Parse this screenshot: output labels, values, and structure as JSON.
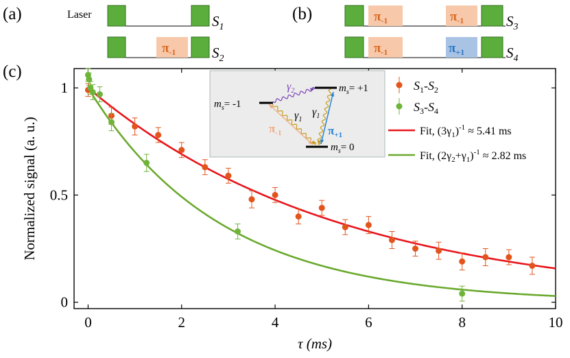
{
  "panels": {
    "a": {
      "label": "(a)",
      "laser_label": "Laser",
      "rows": [
        {
          "name": "S",
          "sub": "1",
          "pulse": null
        },
        {
          "name": "S",
          "sub": "2",
          "pulse": {
            "sym": "π",
            "sub": "-1"
          }
        }
      ]
    },
    "b": {
      "label": "(b)",
      "rows": [
        {
          "name": "S",
          "sub": "3",
          "pulses": [
            {
              "sym": "π",
              "sub": "-1"
            },
            {
              "sym": "π",
              "sub": "-1"
            }
          ]
        },
        {
          "name": "S",
          "sub": "4",
          "pulses": [
            {
              "sym": "π",
              "sub": "-1"
            },
            {
              "sym": "π",
              "sub": "+1"
            }
          ]
        }
      ]
    },
    "c": {
      "label": "(c)"
    }
  },
  "colors": {
    "laser_green": "#5cae3c",
    "laser_border": "#2f6d1c",
    "pi_minus_fill": "#f7c9aa",
    "pi_minus_text": "#d9651c",
    "pi_plus_fill": "#a9c3e4",
    "pi_plus_text": "#2a74c0",
    "s12_color": "#e2541c",
    "s34_color": "#6fb43a",
    "fit_red": "#e8141c",
    "fit_green": "#6aa92d",
    "inset_bg": "#ececec",
    "wavy_purple": "#7a44b5",
    "wavy_gold": "#c99a1c",
    "arrow_peach": "#f0aa7e",
    "arrow_blue": "#2383d6"
  },
  "inset": {
    "levels": [
      {
        "label": "m",
        "sub": "s",
        "value": "= -1"
      },
      {
        "label": "m",
        "sub": "s",
        "value": "= +1"
      },
      {
        "label": "m",
        "sub": "s",
        "value": "= 0"
      }
    ],
    "gamma2": {
      "sym": "γ",
      "sub": "2"
    },
    "gamma1_left": {
      "sym": "γ",
      "sub": "1"
    },
    "gamma1_right": {
      "sym": "γ",
      "sub": "1"
    },
    "pi_minus": {
      "sym": "π",
      "sub": "-1"
    },
    "pi_plus": {
      "sym": "π",
      "sub": "+1"
    }
  },
  "chart_data": {
    "type": "scatter",
    "xlabel": "τ (ms)",
    "ylabel": "Normalized signal (a. u.)",
    "xlim": [
      -0.3,
      10
    ],
    "ylim": [
      -0.03,
      1.09
    ],
    "xticks": [
      0,
      2,
      4,
      6,
      8,
      10
    ],
    "xtick_labels": [
      "0",
      "2",
      "4",
      "6",
      "8",
      "10"
    ],
    "yticks": [
      0,
      0.5,
      1
    ],
    "ytick_labels": [
      "0",
      "0.5",
      "1"
    ],
    "grid": false,
    "legend_position": "top-right",
    "series": [
      {
        "name": "S1-S2",
        "legend": {
          "a": "S",
          "a_sub": "1",
          "sep": "-",
          "b": "S",
          "b_sub": "2"
        },
        "color": "#e2541c",
        "x": [
          0,
          0.5,
          1,
          1.5,
          2,
          2.5,
          3,
          3.5,
          4,
          4.5,
          5,
          5.5,
          6,
          6.5,
          7,
          7.5,
          8,
          8.5,
          9,
          9.5
        ],
        "y": [
          0.99,
          0.87,
          0.82,
          0.78,
          0.71,
          0.63,
          0.59,
          0.48,
          0.5,
          0.4,
          0.44,
          0.35,
          0.36,
          0.29,
          0.25,
          0.24,
          0.19,
          0.21,
          0.21,
          0.17
        ],
        "err": [
          0.03,
          0.04,
          0.04,
          0.035,
          0.035,
          0.035,
          0.035,
          0.04,
          0.035,
          0.035,
          0.035,
          0.035,
          0.04,
          0.04,
          0.035,
          0.04,
          0.04,
          0.04,
          0.035,
          0.04
        ]
      },
      {
        "name": "S3-S4",
        "legend": {
          "a": "S",
          "a_sub": "3",
          "sep": "-",
          "b": "S",
          "b_sub": "4"
        },
        "color": "#6fb43a",
        "x": [
          0,
          0.02,
          0.05,
          0.1,
          0.25,
          0.5,
          1.25,
          3.2,
          8
        ],
        "y": [
          1.06,
          1.04,
          1.0,
          0.98,
          0.97,
          0.84,
          0.65,
          0.33,
          0.04
        ],
        "err": [
          0.03,
          0.03,
          0.03,
          0.035,
          0.035,
          0.04,
          0.04,
          0.035,
          0.035
        ]
      }
    ],
    "fits": [
      {
        "name": "Fit S1-S2",
        "label": "Fit, (3γ1)^-1 ≈ 5.41 ms",
        "label_parts": {
          "prefix": "Fit, (3γ",
          "sub1": "1",
          "close": ")",
          "sup": "-1",
          "suffix": " ≈ 5.41 ms"
        },
        "color": "#e8141c",
        "amplitude": 1.0,
        "tau": 5.41,
        "offset": 0
      },
      {
        "name": "Fit S3-S4",
        "label": "Fit, (2γ2+γ1)^-1 ≈ 2.82 ms",
        "label_parts": {
          "prefix": "Fit, (2γ",
          "sub1": "2",
          "mid": "+γ",
          "sub2": "1",
          "close": ")",
          "sup": "-1",
          "suffix": " ≈ 2.82 ms"
        },
        "color": "#6aa92d",
        "amplitude": 1.0,
        "tau": 2.82,
        "offset": 0
      }
    ]
  }
}
